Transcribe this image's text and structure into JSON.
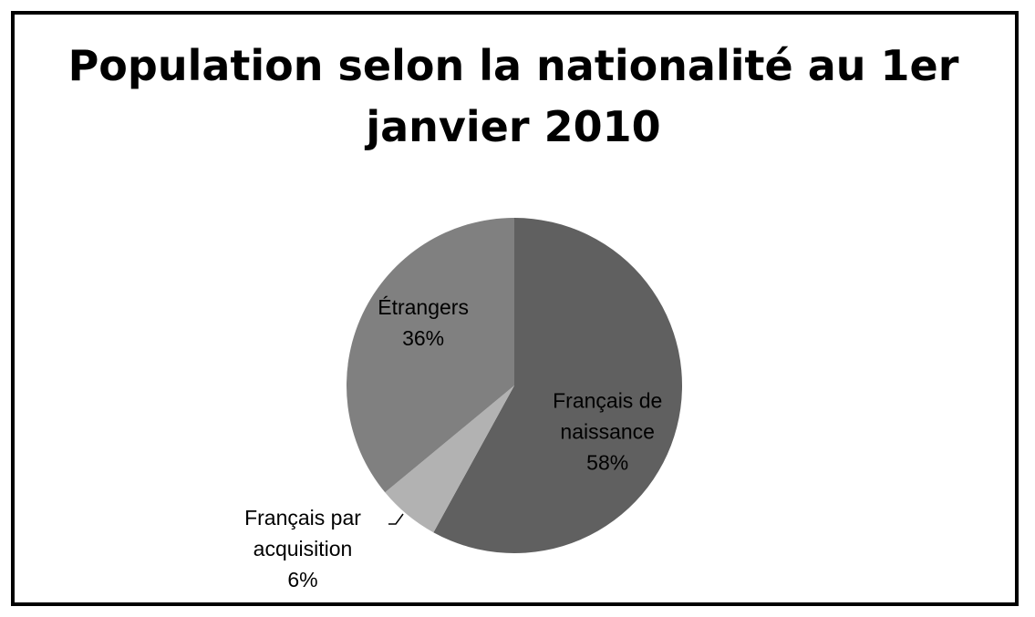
{
  "chart_data": {
    "type": "pie",
    "title_lines": [
      "Population selon la nationalité au 1er",
      "janvier 2010"
    ],
    "start_angle_deg": 0,
    "direction": "clockwise",
    "legend": "none",
    "slices": [
      {
        "name": "Français de naissance",
        "label_lines": [
          "Français de",
          "naissance"
        ],
        "value": 58,
        "percent_label": "58%",
        "color": "#606060"
      },
      {
        "name": "Français par acquisition",
        "label_lines": [
          "Français par",
          "acquisition"
        ],
        "value": 6,
        "percent_label": "6%",
        "color": "#b2b2b2"
      },
      {
        "name": "Étrangers",
        "label_lines": [
          "Étrangers"
        ],
        "value": 36,
        "percent_label": "36%",
        "color": "#808080"
      }
    ]
  }
}
